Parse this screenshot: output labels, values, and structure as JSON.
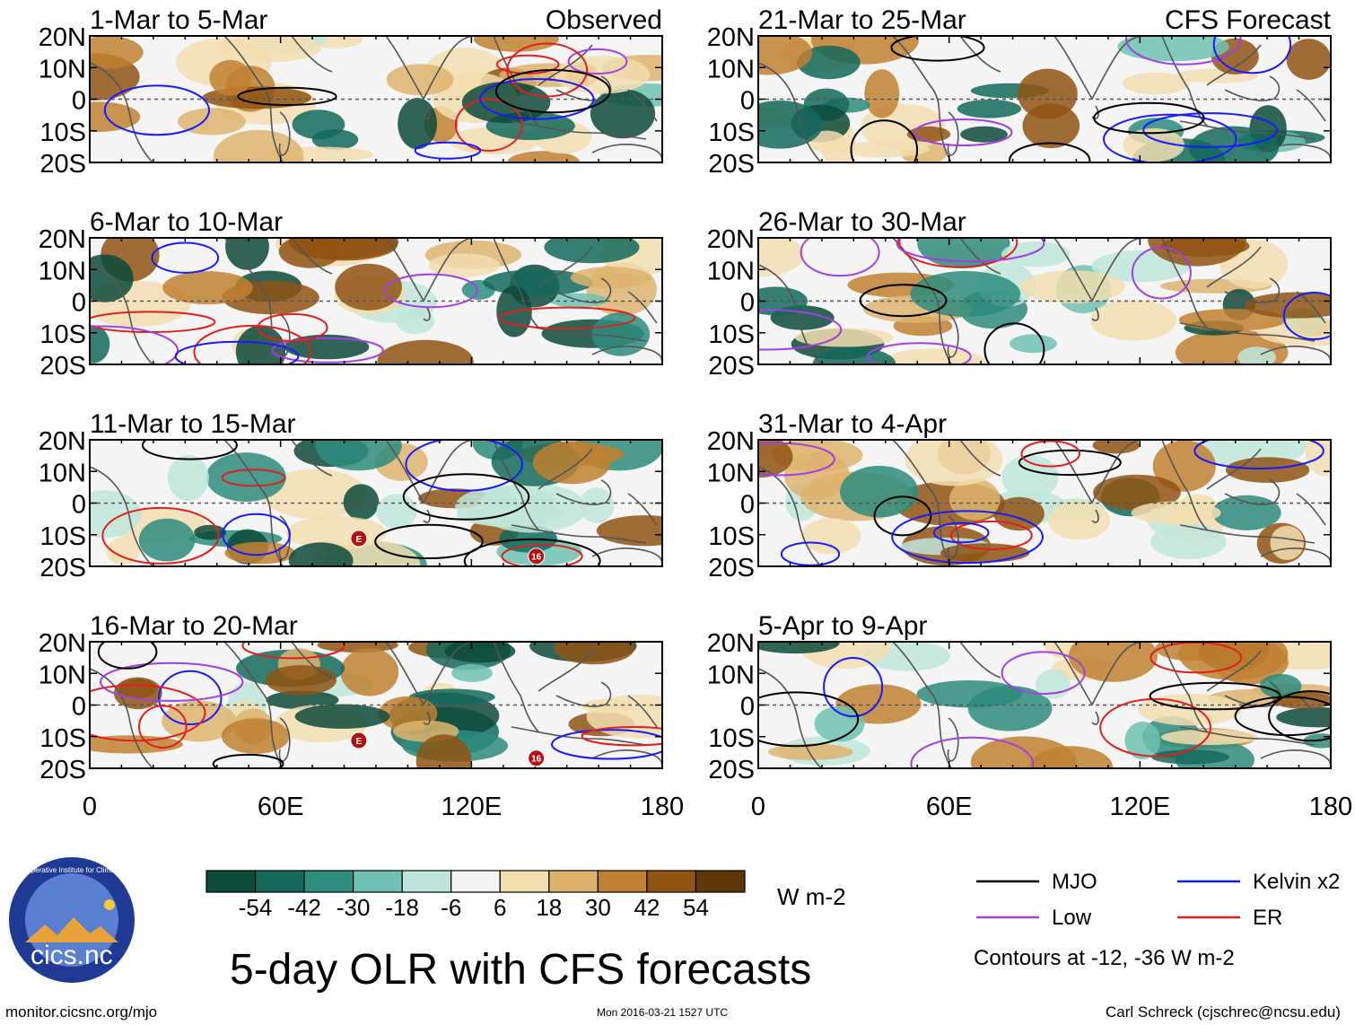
{
  "chart_data": {
    "type": "heatmap",
    "title": "5-day OLR with CFS forecasts",
    "units": "W m-2",
    "x_ticks": [
      "0",
      "60E",
      "120E",
      "180"
    ],
    "y_ticks": [
      "20N",
      "10N",
      "0",
      "10S",
      "20S"
    ],
    "xlim": [
      0,
      180
    ],
    "ylim": [
      -20,
      20
    ],
    "columns": [
      {
        "label": "Observed",
        "panels": [
          {
            "period": "1-Mar to 5-Mar"
          },
          {
            "period": "6-Mar to 10-Mar"
          },
          {
            "period": "11-Mar to 15-Mar"
          },
          {
            "period": "16-Mar to 20-Mar"
          }
        ]
      },
      {
        "label": "CFS Forecast",
        "panels": [
          {
            "period": "21-Mar to 25-Mar"
          },
          {
            "period": "26-Mar to 30-Mar"
          },
          {
            "period": "31-Mar to 4-Apr"
          },
          {
            "period": "5-Apr to 9-Apr"
          }
        ]
      }
    ],
    "colorbar": {
      "labels": [
        "-54",
        "-42",
        "-30",
        "-18",
        "-6",
        "6",
        "18",
        "30",
        "42",
        "54"
      ],
      "colors": [
        "#0c4a3a",
        "#13685a",
        "#2d8c7c",
        "#6fc2b1",
        "#bfe6dc",
        "#f5f5f5",
        "#f2deb0",
        "#ddb46e",
        "#bf8031",
        "#8f5314",
        "#5e370a"
      ]
    },
    "legend": [
      {
        "label": "MJO",
        "color": "#000000"
      },
      {
        "label": "Kelvin x2",
        "color": "#1a1aff"
      },
      {
        "label": "Low",
        "color": "#a040e0"
      },
      {
        "label": "ER",
        "color": "#e02020"
      }
    ],
    "contour_note": "Contours at -12, -36 W m-2",
    "storm_markers": [
      "E",
      "16"
    ]
  },
  "footer": {
    "logo_text": "cics.nc",
    "logo_ring_text": "Cooperative Institute for Climate and Satellites",
    "url": "monitor.cicsnc.org/mjo",
    "timestamp": "Mon 2016-03-21 1527 UTC",
    "credit": "Carl Schreck (cjschrec@ncsu.edu)"
  }
}
